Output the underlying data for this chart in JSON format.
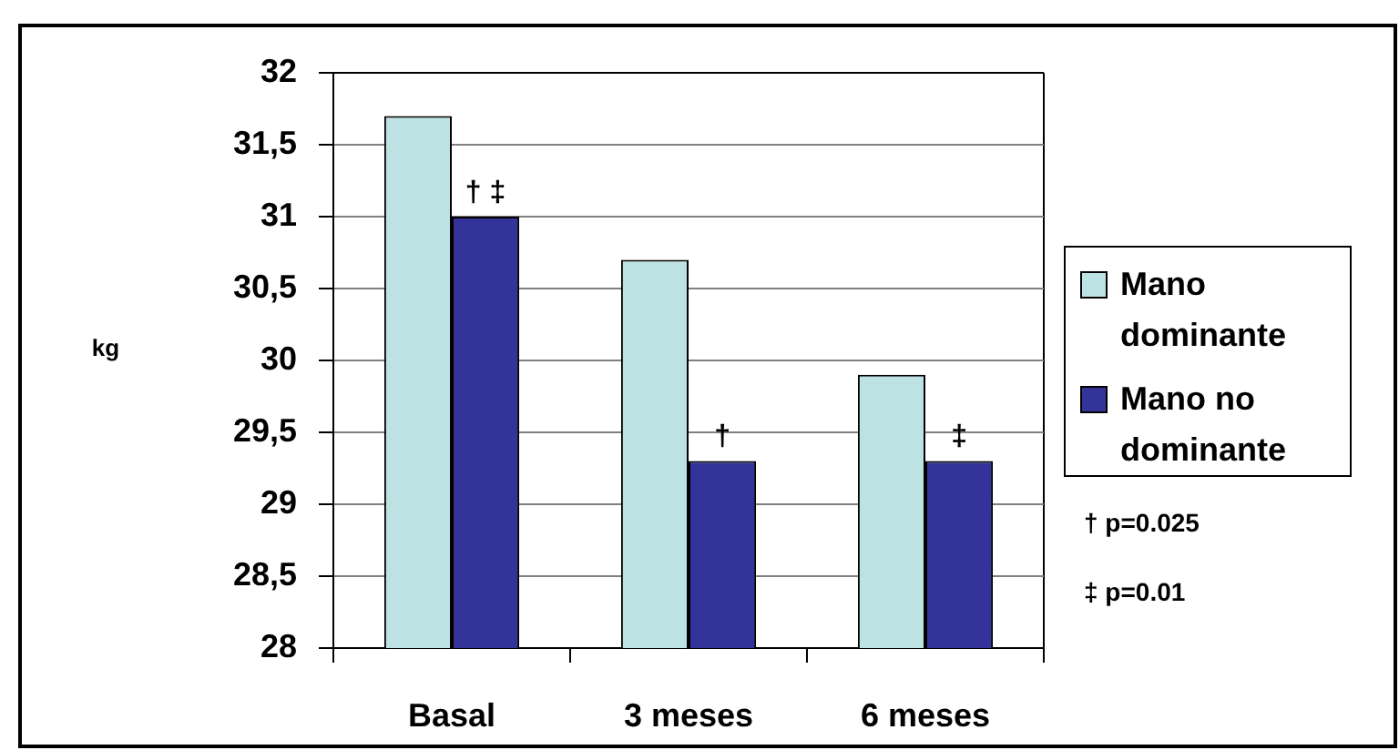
{
  "chart_data": {
    "type": "bar",
    "ylabel": "kg",
    "categories": [
      "Basal",
      "3 meses",
      "6 meses"
    ],
    "series": [
      {
        "name": "Mano dominante",
        "color": "#bde2e3",
        "values": [
          31.7,
          30.7,
          29.9
        ]
      },
      {
        "name": "Mano no dominante",
        "color": "#333399",
        "values": [
          31.0,
          29.3,
          29.3
        ]
      }
    ],
    "ylim": [
      28,
      32
    ],
    "yticks": [
      28,
      {
        "value": 28.5,
        "label": "28,5"
      },
      29,
      {
        "value": 29.5,
        "label": "29,5"
      },
      30,
      {
        "value": 30.5,
        "label": "30,5"
      },
      31,
      {
        "value": 31.5,
        "label": "31,5"
      },
      32
    ],
    "grid": "y",
    "legend": "right",
    "annotations": [
      {
        "text": "† ‡",
        "x": "Basal",
        "y": 31.0
      },
      {
        "text": "†",
        "x": "3 meses",
        "y": 29.3
      },
      {
        "text": "‡",
        "x": "6 meses",
        "y": 29.3
      },
      "† p=0.025",
      "‡ p=0.01"
    ]
  }
}
